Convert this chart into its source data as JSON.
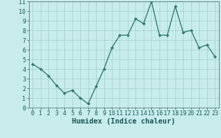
{
  "title": "",
  "xlabel": "Humidex (Indice chaleur)",
  "x": [
    0,
    1,
    2,
    3,
    4,
    5,
    6,
    7,
    8,
    9,
    10,
    11,
    12,
    13,
    14,
    15,
    16,
    17,
    18,
    19,
    20,
    21,
    22,
    23
  ],
  "y": [
    4.5,
    4.0,
    3.3,
    2.3,
    1.5,
    1.8,
    1.0,
    0.4,
    2.2,
    4.0,
    6.2,
    7.5,
    7.5,
    9.2,
    8.7,
    11.0,
    7.5,
    7.5,
    10.5,
    7.8,
    8.0,
    6.2,
    6.5,
    5.3
  ],
  "line_color": "#2e7d6e",
  "marker": "D",
  "marker_size": 2.0,
  "bg_color": "#c8ecec",
  "grid_color": "#a0cccc",
  "ylim": [
    0,
    11
  ],
  "xlim_left": -0.5,
  "xlim_right": 23.5,
  "yticks": [
    0,
    1,
    2,
    3,
    4,
    5,
    6,
    7,
    8,
    9,
    10,
    11
  ],
  "xticks": [
    0,
    1,
    2,
    3,
    4,
    5,
    6,
    7,
    8,
    9,
    10,
    11,
    12,
    13,
    14,
    15,
    16,
    17,
    18,
    19,
    20,
    21,
    22,
    23
  ],
  "xlabel_fontsize": 7.5,
  "tick_fontsize": 6.0,
  "label_color": "#1a5555",
  "axis_bg": "#c8ecec",
  "linewidth": 1.0
}
